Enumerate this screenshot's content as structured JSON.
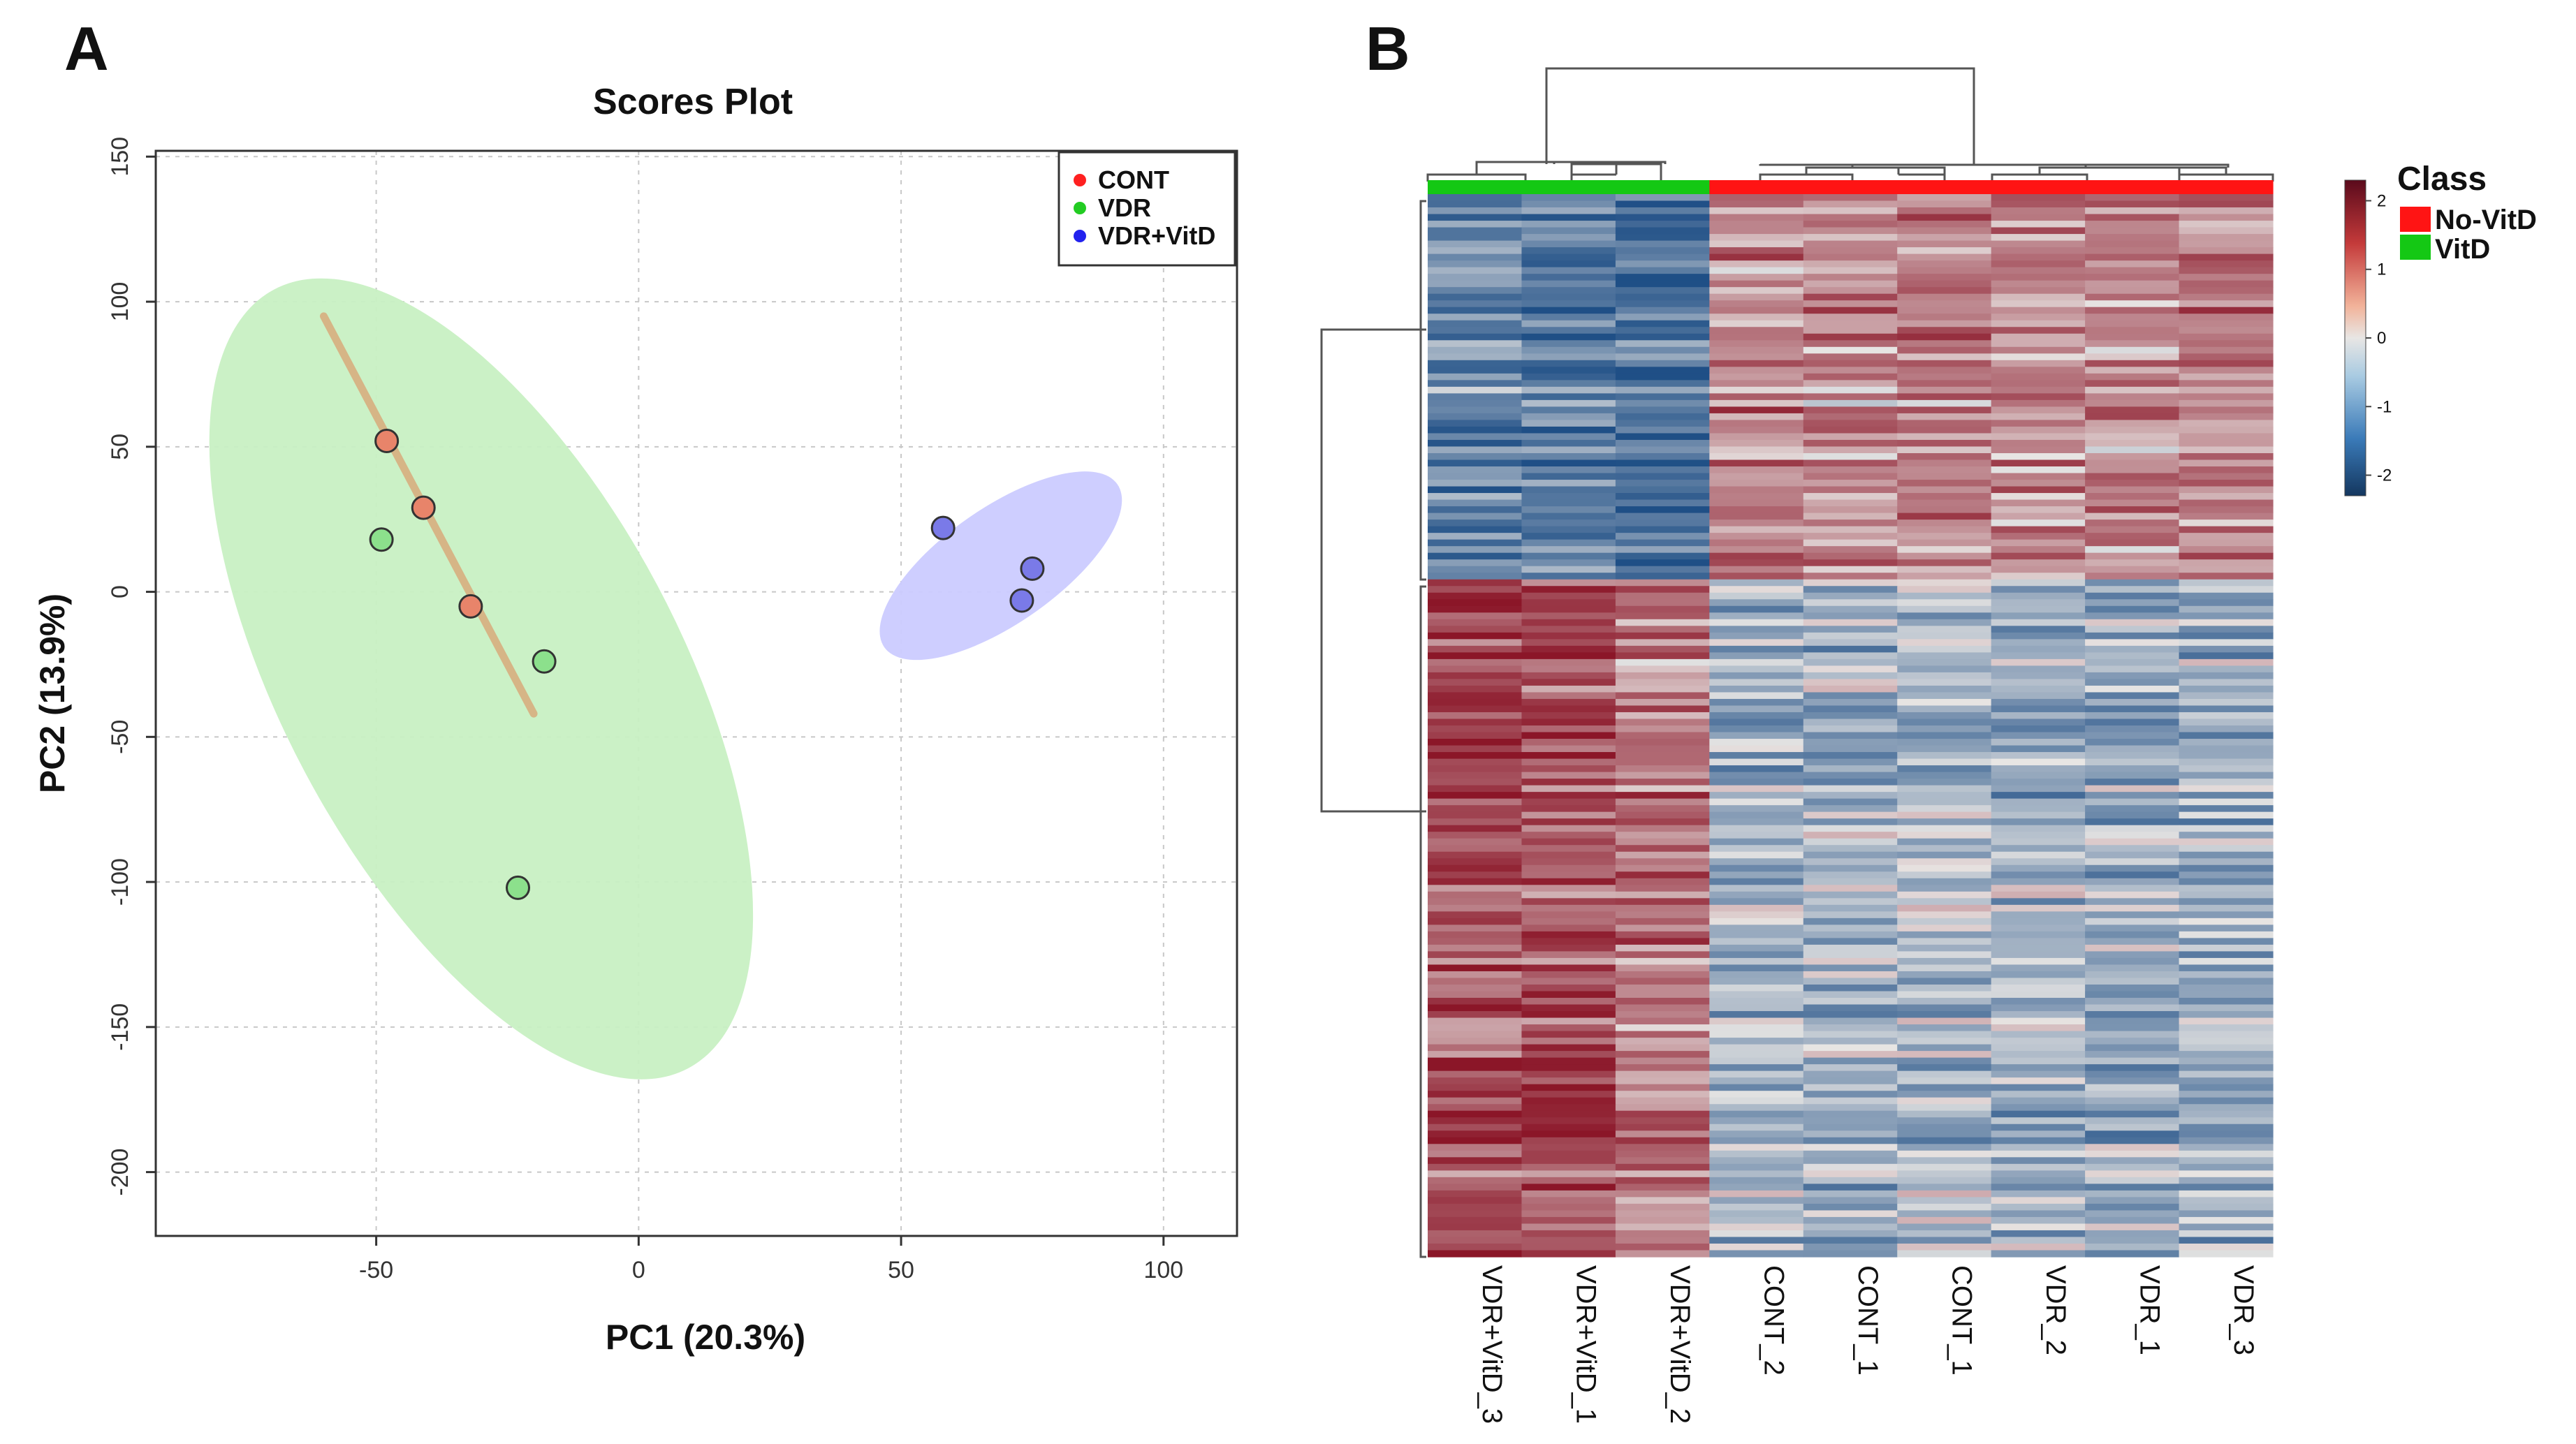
{
  "panels": {
    "a_label": "A",
    "b_label": "B"
  },
  "chart_data": [
    {
      "type": "scatter",
      "title": "Scores Plot",
      "xlabel": "PC1 (20.3%)",
      "ylabel": "PC2 (13.9%)",
      "xlim": [
        -92,
        114
      ],
      "ylim": [
        -222,
        152
      ],
      "xticks": [
        -50,
        0,
        50,
        100
      ],
      "yticks": [
        150,
        100,
        50,
        0,
        -50,
        -100,
        -150,
        -200
      ],
      "grid": true,
      "legend_position": "top-right",
      "series": [
        {
          "name": "CONT",
          "color": "#ff2020",
          "marker_fill": "#e8846a",
          "points": [
            [
              -48,
              52
            ],
            [
              -41,
              29
            ],
            [
              -32,
              -5
            ]
          ],
          "confidence_band": {
            "from": [
              -60,
              95
            ],
            "to": [
              -20,
              -42
            ],
            "color": "#d9a070"
          }
        },
        {
          "name": "VDR",
          "color": "#22cc22",
          "marker_fill": "#8ce08c",
          "points": [
            [
              -49,
              18
            ],
            [
              -18,
              -24
            ],
            [
              -23,
              -102
            ]
          ],
          "confidence_ellipse": {
            "center": [
              -30,
              -30
            ],
            "semi_major": 152,
            "semi_minor": 38,
            "angle_deg": 62,
            "color": "#c8f0c3"
          }
        },
        {
          "name": "VDR+VitD",
          "color": "#2222ee",
          "marker_fill": "#7a7ae8",
          "points": [
            [
              58,
              22
            ],
            [
              75,
              8
            ],
            [
              73,
              -3
            ]
          ],
          "confidence_ellipse": {
            "center": [
              69,
              9
            ],
            "semi_major": 49,
            "semi_minor": 11,
            "angle_deg": -35,
            "color": "#cbcbff"
          }
        }
      ]
    },
    {
      "type": "heatmap",
      "columns": [
        "VDR+VitD_3",
        "VDR+VitD_1",
        "VDR+VitD_2",
        "CONT_2",
        "CONT_1",
        "CONT_1",
        "VDR_2",
        "VDR_1",
        "VDR_3"
      ],
      "column_class": [
        "VitD",
        "VitD",
        "VitD",
        "No-VitD",
        "No-VitD",
        "No-VitD",
        "No-VitD",
        "No-VitD",
        "No-VitD"
      ],
      "row_cluster_split": 0.365,
      "row_count": 160,
      "cluster_means": [
        [
          -1.3,
          -1.4,
          -1.6,
          0.9,
          0.8,
          0.9,
          0.8,
          0.8,
          0.9
        ],
        [
          1.6,
          1.5,
          1.1,
          -0.6,
          -0.6,
          -0.5,
          -0.7,
          -0.7,
          -0.6
        ]
      ],
      "color_scale": {
        "ticks": [
          2,
          1,
          0,
          -1,
          -2
        ],
        "low": "#1f4f86",
        "mid": "#e8e6e4",
        "high": "#8b1628"
      },
      "class_legend": {
        "title": "Class",
        "entries": [
          {
            "label": "No-VitD",
            "color": "#ff1414"
          },
          {
            "label": "VitD",
            "color": "#14c814"
          }
        ]
      }
    }
  ]
}
